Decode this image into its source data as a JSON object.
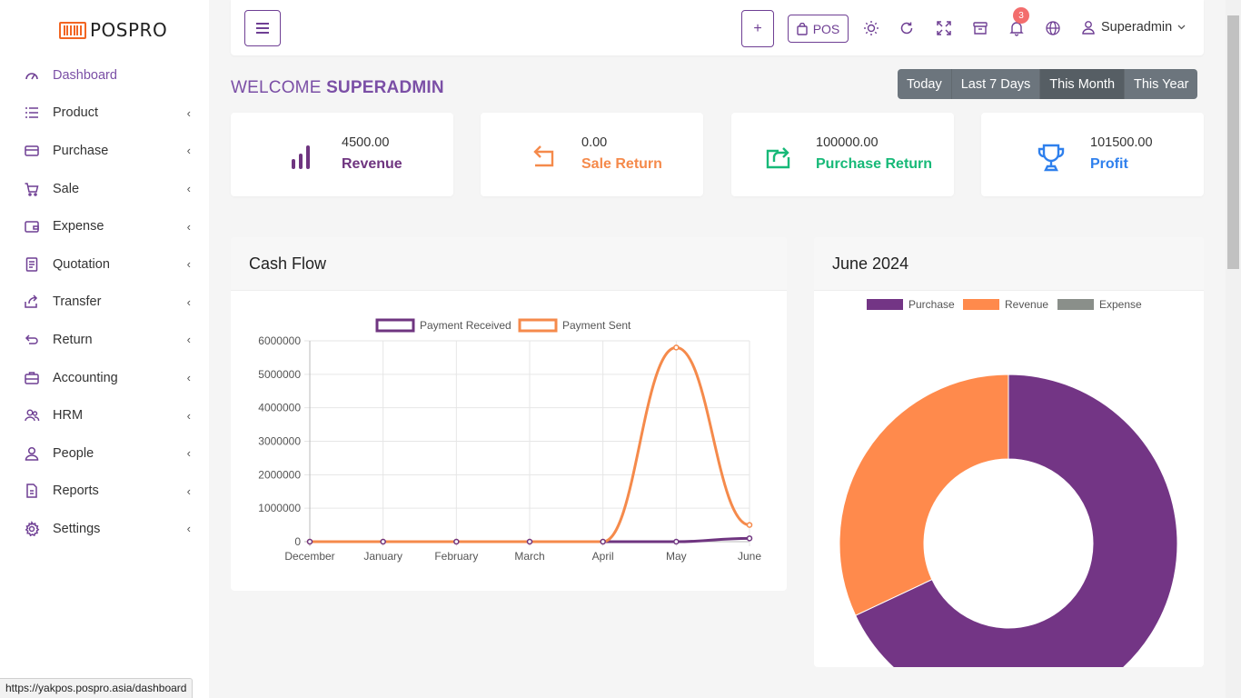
{
  "app": {
    "logo_text": "POSPRO"
  },
  "sidebar": {
    "items": [
      {
        "label": "Dashboard",
        "icon": "gauge-icon",
        "active": true,
        "expandable": false
      },
      {
        "label": "Product",
        "icon": "list-icon",
        "expandable": true
      },
      {
        "label": "Purchase",
        "icon": "credit-card-icon",
        "expandable": true
      },
      {
        "label": "Sale",
        "icon": "cart-icon",
        "expandable": true
      },
      {
        "label": "Expense",
        "icon": "wallet-icon",
        "expandable": true
      },
      {
        "label": "Quotation",
        "icon": "document-icon",
        "expandable": true
      },
      {
        "label": "Transfer",
        "icon": "share-icon",
        "expandable": true
      },
      {
        "label": "Return",
        "icon": "return-icon",
        "expandable": true
      },
      {
        "label": "Accounting",
        "icon": "briefcase-icon",
        "expandable": true
      },
      {
        "label": "HRM",
        "icon": "users-icon",
        "expandable": true
      },
      {
        "label": "People",
        "icon": "user-icon",
        "expandable": true
      },
      {
        "label": "Reports",
        "icon": "report-icon",
        "expandable": true
      },
      {
        "label": "Settings",
        "icon": "gear-icon",
        "expandable": true
      }
    ]
  },
  "header": {
    "pos_label": "POS",
    "plus_label": "+",
    "notification_count": "3",
    "user_name": "Superadmin"
  },
  "welcome": {
    "prefix": "WELCOME",
    "name": "SUPERADMIN"
  },
  "range_filters": [
    {
      "label": "Today",
      "active": false
    },
    {
      "label": "Last 7 Days",
      "active": false
    },
    {
      "label": "This Month",
      "active": true
    },
    {
      "label": "This Year",
      "active": false
    }
  ],
  "stats": [
    {
      "amount": "4500.00",
      "label": "Revenue",
      "color": "#6f3580",
      "icon": "bar-chart-icon"
    },
    {
      "amount": "0.00",
      "label": "Sale Return",
      "color": "#f58a4b",
      "icon": "return-arrow-icon"
    },
    {
      "amount": "100000.00",
      "label": "Purchase Return",
      "color": "#17b978",
      "icon": "export-icon"
    },
    {
      "amount": "101500.00",
      "label": "Profit",
      "color": "#2f80ed",
      "icon": "trophy-icon"
    }
  ],
  "cashflow": {
    "title": "Cash Flow",
    "chart_data": {
      "type": "line",
      "categories": [
        "December",
        "January",
        "February",
        "March",
        "April",
        "May",
        "June"
      ],
      "ylim": [
        0,
        6000000
      ],
      "yticks": [
        "0",
        "1000000",
        "2000000",
        "3000000",
        "4000000",
        "5000000",
        "6000000"
      ],
      "grid": true,
      "legend_position": "top",
      "series": [
        {
          "name": "Payment Received",
          "color": "#6f3580",
          "values": [
            0,
            0,
            0,
            0,
            0,
            0,
            100000
          ]
        },
        {
          "name": "Payment Sent",
          "color": "#f58a4b",
          "values": [
            0,
            0,
            0,
            0,
            0,
            5800000,
            500000
          ]
        }
      ]
    }
  },
  "monthly": {
    "title": "June 2024",
    "chart_data": {
      "type": "pie",
      "donut": true,
      "legend_position": "top",
      "labels": [
        "Purchase",
        "Revenue",
        "Expense"
      ],
      "values": [
        68,
        32,
        0
      ],
      "colors": [
        "#733585",
        "#ff8a4c",
        "#8a8f8a"
      ]
    }
  },
  "status_bar": {
    "url": "https://yakpos.pospro.asia/dashboard"
  }
}
